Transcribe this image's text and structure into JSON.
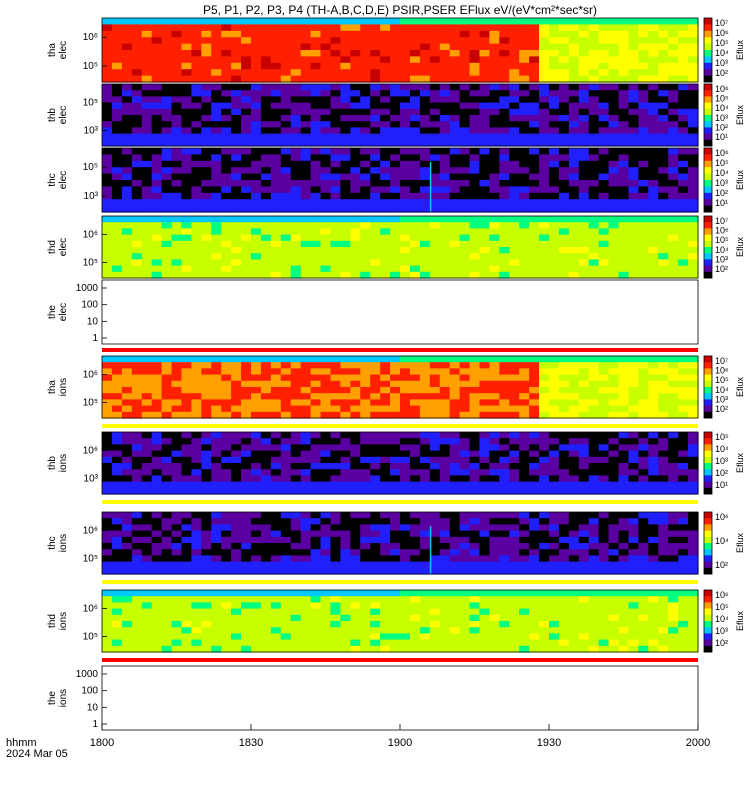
{
  "title": "P5, P1, P2, P3, P4 (TH-A,B,C,D,E) PSIR,PSER EFlux eV/(eV*cm²*sec*sr)",
  "footer": {
    "label_line1": "hhmm",
    "label_line2": "2024 Mar 05"
  },
  "colors": {
    "spectrum": [
      "#000000",
      "#5a00a0",
      "#2020ff",
      "#00c8ff",
      "#00ff80",
      "#c8ff00",
      "#ffff00",
      "#ffa000",
      "#ff2000",
      "#c80000"
    ],
    "bar_red": "#ff0000",
    "bar_yellow": "#ffff00"
  },
  "chart_data": {
    "type": "heatmap",
    "x_ticks": [
      "1800",
      "1830",
      "1900",
      "1930",
      "2000"
    ],
    "panels": [
      {
        "id": "tha-elec",
        "ylabel": [
          "tha",
          "elec"
        ],
        "yticks": [
          "10⁶",
          "10⁵"
        ],
        "cbar_label": "Eflux",
        "cbar_ticks": [
          "10⁷",
          "10⁶",
          "10⁵",
          "10⁴",
          "10³",
          "10²"
        ],
        "level_mean": 0.85,
        "transition_frac": 0.73
      },
      {
        "id": "thb-elec",
        "ylabel": [
          "thb",
          "elec"
        ],
        "yticks": [
          "10⁵",
          "10³"
        ],
        "cbar_label": "Eflux",
        "cbar_ticks": [
          "10⁶",
          "10⁵",
          "10⁴",
          "10³",
          "10²",
          "10¹"
        ],
        "level_mean": 0.1
      },
      {
        "id": "thc-elec",
        "ylabel": [
          "thc",
          "elec"
        ],
        "yticks": [
          "10⁵",
          "10³"
        ],
        "cbar_label": "Eflux",
        "cbar_ticks": [
          "10⁶",
          "10⁵",
          "10⁴",
          "10³",
          "10²",
          "10¹"
        ],
        "level_mean": 0.1,
        "spike_frac": 0.55
      },
      {
        "id": "thd-elec",
        "ylabel": [
          "thd",
          "elec"
        ],
        "yticks": [
          "10⁶",
          "10⁵"
        ],
        "cbar_label": "Eflux",
        "cbar_ticks": [
          "10⁷",
          "10⁶",
          "10⁵",
          "10⁴",
          "10³",
          "10²"
        ],
        "level_mean": 0.55
      },
      {
        "id": "the-elec",
        "ylabel": [
          "the",
          "elec"
        ],
        "yticks": [
          "1000",
          "100",
          "10",
          "1"
        ],
        "empty": true
      },
      {
        "id": "tha-ions",
        "ylabel": [
          "tha",
          "ions"
        ],
        "yticks": [
          "10⁶",
          "10⁵"
        ],
        "cbar_label": "Eflux",
        "cbar_ticks": [
          "10⁷",
          "10⁶",
          "10⁵",
          "10⁴",
          "10³",
          "10²"
        ],
        "level_mean": 0.8,
        "transition_frac": 0.73
      },
      {
        "id": "thb-ions",
        "ylabel": [
          "thb",
          "ions"
        ],
        "yticks": [
          "10⁶",
          "10³"
        ],
        "cbar_label": "Eflux",
        "cbar_ticks": [
          "10⁵",
          "10⁴",
          "10³",
          "10²",
          "10¹"
        ],
        "level_mean": 0.1
      },
      {
        "id": "thc-ions",
        "ylabel": [
          "thc",
          "ions"
        ],
        "yticks": [
          "10⁶",
          "10⁵"
        ],
        "cbar_label": "Eflux",
        "cbar_ticks": [
          "10⁶",
          "10⁴",
          "10²"
        ],
        "level_mean": 0.1,
        "spike_frac": 0.55
      },
      {
        "id": "thd-ions",
        "ylabel": [
          "thd",
          "ions"
        ],
        "yticks": [
          "10⁶",
          "10⁵"
        ],
        "cbar_label": "Eflux",
        "cbar_ticks": [
          "10⁶",
          "10⁵",
          "10⁴",
          "10³",
          "10²"
        ],
        "level_mean": 0.55
      },
      {
        "id": "the-ions",
        "ylabel": [
          "the",
          "ions"
        ],
        "yticks": [
          "1000",
          "100",
          "10",
          "1"
        ],
        "empty": true
      }
    ]
  }
}
